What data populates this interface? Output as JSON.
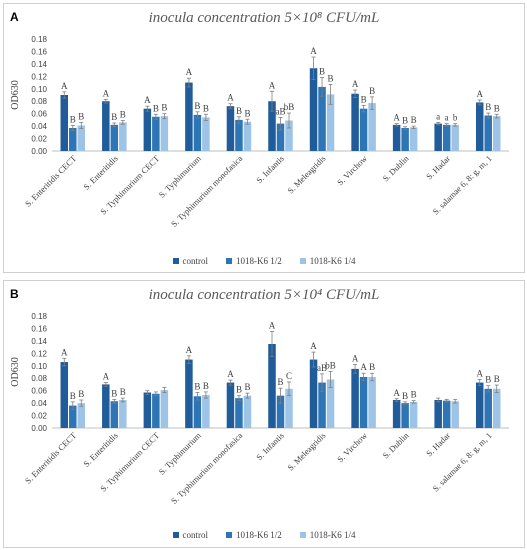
{
  "chart_data": [
    {
      "panel_label": "A",
      "title": "inocula concentration 5×10⁸ CFU/mL",
      "type": "bar",
      "ylabel": "OD630",
      "ylim": [
        0,
        0.18
      ],
      "yticks": [
        "0.00",
        "0.02",
        "0.04",
        "0.06",
        "0.08",
        "0.10",
        "0.12",
        "0.14",
        "0.16",
        "0.18"
      ],
      "grid": false,
      "legend_position": "bottom",
      "categories": [
        "S. Enteritidis CECT",
        "S. Enteritidis",
        "S. Typhimurium CECT",
        "S. Typhimurium",
        "S. Typhimurium monofasica",
        "S. Infantis",
        "S. Meleagridis",
        "S. Virchow",
        "S. Dublin",
        "S. Hadar",
        "S. salamae 6, 8: g, m, 1"
      ],
      "series": [
        {
          "name": "control",
          "color": "#1f5c99",
          "values": [
            0.09,
            0.08,
            0.068,
            0.11,
            0.072,
            0.08,
            0.133,
            0.092,
            0.042,
            0.044,
            0.078
          ],
          "errors": [
            0.005,
            0.003,
            0.004,
            0.007,
            0.004,
            0.016,
            0.018,
            0.006,
            0.002,
            0.002,
            0.004
          ],
          "letters": [
            "A",
            "A",
            "A",
            "A",
            "A",
            "A",
            "A",
            "A",
            "A",
            "a",
            "A"
          ]
        },
        {
          "name": "1018-K6 1/2",
          "color": "#2e75b6",
          "values": [
            0.037,
            0.042,
            0.055,
            0.058,
            0.05,
            0.044,
            0.103,
            0.068,
            0.037,
            0.042,
            0.057
          ],
          "errors": [
            0.004,
            0.003,
            0.004,
            0.005,
            0.005,
            0.01,
            0.015,
            0.005,
            0.002,
            0.002,
            0.004
          ],
          "letters": [
            "B",
            "B",
            "B",
            "B",
            "B",
            "aB",
            "B",
            "B",
            "B",
            "a",
            "B"
          ]
        },
        {
          "name": "1018-K6 1/4",
          "color": "#9dc3e6",
          "values": [
            0.041,
            0.046,
            0.056,
            0.054,
            0.047,
            0.049,
            0.091,
            0.077,
            0.038,
            0.042,
            0.056
          ],
          "errors": [
            0.005,
            0.003,
            0.004,
            0.005,
            0.004,
            0.012,
            0.016,
            0.01,
            0.002,
            0.002,
            0.003
          ],
          "letters": [
            "B",
            "B",
            "B",
            "B",
            "B",
            "bB",
            "B",
            "B",
            "B",
            "b",
            "B"
          ]
        }
      ]
    },
    {
      "panel_label": "B",
      "title": "inocula concentration 5×10⁴ CFU/mL",
      "type": "bar",
      "ylabel": "OD630",
      "ylim": [
        0,
        0.18
      ],
      "yticks": [
        "0.00",
        "0.02",
        "0.04",
        "0.06",
        "0.08",
        "0.10",
        "0.12",
        "0.14",
        "0.16",
        "0.18"
      ],
      "grid": false,
      "legend_position": "bottom",
      "categories": [
        "S. Enteritidis CECT",
        "S. Enteritidis",
        "S. Typhimurium CECT",
        "S. Typhimurium",
        "S. Typhimurium monofasica",
        "S. Infantis",
        "S. Meleagridis",
        "S. Virchow",
        "S. Dublin",
        "S. Hadar",
        "S. salamae 6, 8: g, m, 1"
      ],
      "series": [
        {
          "name": "control",
          "color": "#1f5c99",
          "values": [
            0.106,
            0.07,
            0.057,
            0.11,
            0.073,
            0.135,
            0.11,
            0.095,
            0.045,
            0.045,
            0.073
          ],
          "errors": [
            0.006,
            0.003,
            0.003,
            0.006,
            0.004,
            0.02,
            0.012,
            0.007,
            0.002,
            0.003,
            0.005
          ],
          "letters": [
            "A",
            "A",
            "",
            "A",
            "A",
            "A",
            "A",
            "A",
            "A",
            "",
            "A"
          ]
        },
        {
          "name": "1018-K6 1/2",
          "color": "#2e75b6",
          "values": [
            0.036,
            0.043,
            0.055,
            0.051,
            0.048,
            0.052,
            0.073,
            0.082,
            0.04,
            0.044,
            0.063
          ],
          "errors": [
            0.006,
            0.003,
            0.003,
            0.006,
            0.004,
            0.012,
            0.014,
            0.006,
            0.002,
            0.002,
            0.005
          ],
          "letters": [
            "B",
            "B",
            "",
            "B",
            "B",
            "B",
            "aB",
            "A",
            "B",
            "",
            "B"
          ]
        },
        {
          "name": "1018-K6 1/4",
          "color": "#9dc3e6",
          "values": [
            0.04,
            0.045,
            0.061,
            0.053,
            0.052,
            0.063,
            0.078,
            0.082,
            0.042,
            0.043,
            0.063
          ],
          "errors": [
            0.005,
            0.003,
            0.004,
            0.005,
            0.004,
            0.011,
            0.013,
            0.006,
            0.002,
            0.003,
            0.006
          ],
          "letters": [
            "B",
            "B",
            "",
            "B",
            "B",
            "C",
            "bB",
            "B",
            "B",
            "",
            "B"
          ]
        }
      ]
    }
  ]
}
